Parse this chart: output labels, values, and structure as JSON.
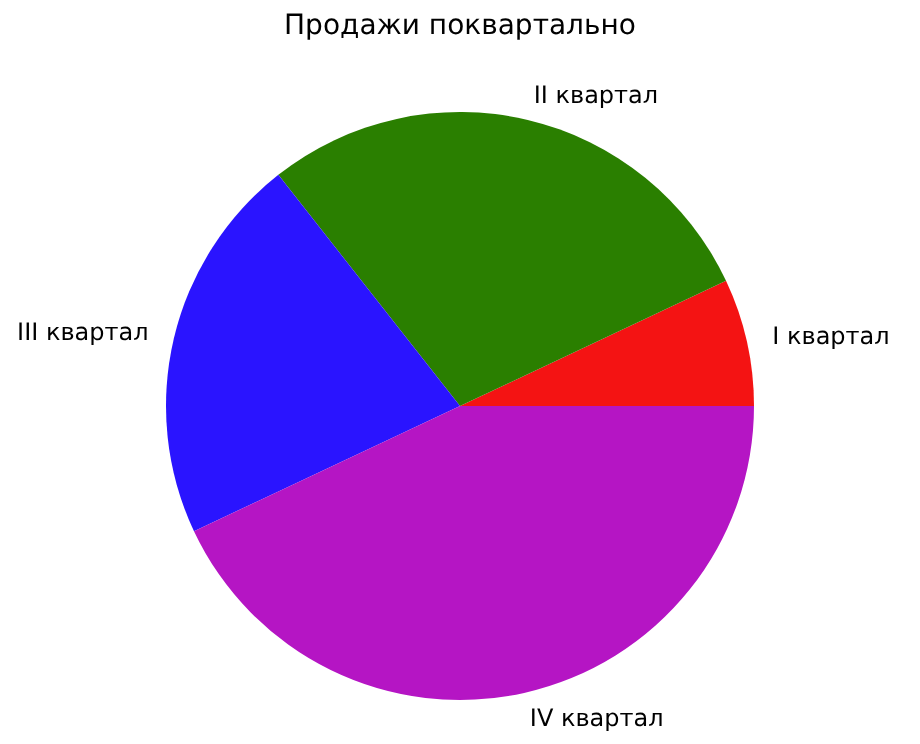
{
  "chart_data": {
    "type": "pie",
    "title": "Продажи поквартально",
    "categories": [
      "I квартал",
      "II квартал",
      "III квартал",
      "IV квартал"
    ],
    "values": [
      7,
      28.6,
      21.4,
      43
    ],
    "colors": [
      "#f41313",
      "#2a7f00",
      "#2a14ff",
      "#b515c4"
    ]
  }
}
